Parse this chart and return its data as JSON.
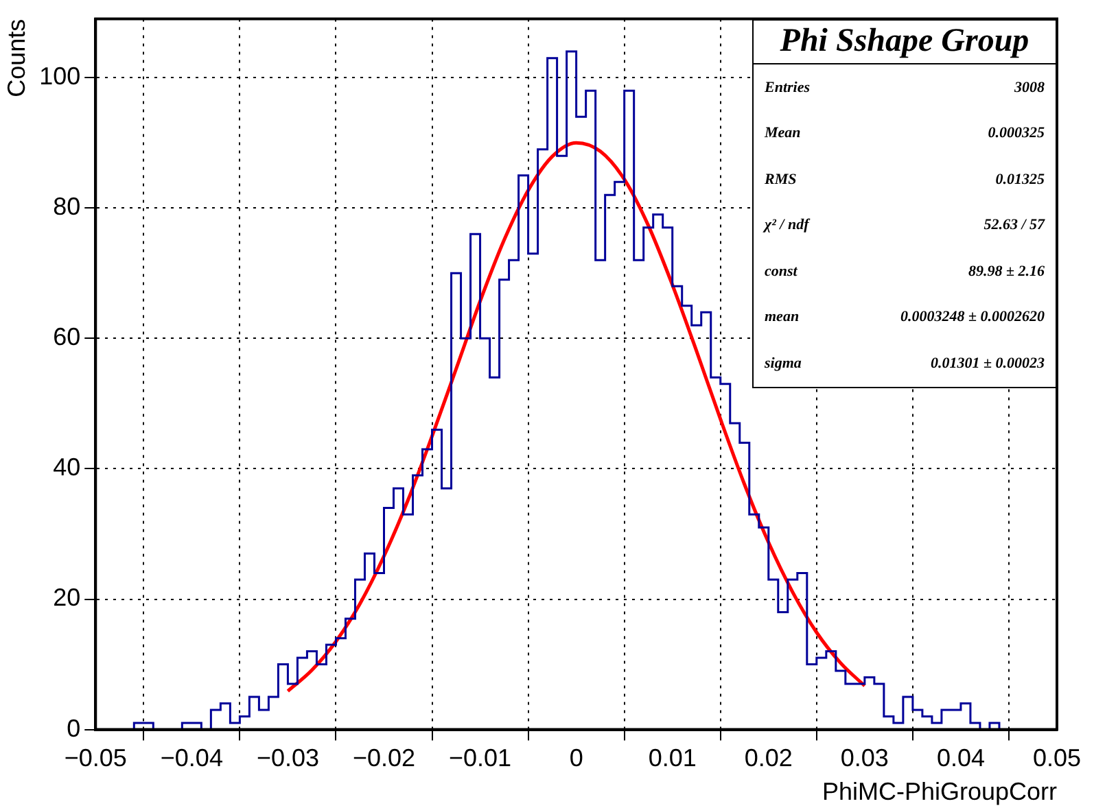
{
  "chart_data": {
    "type": "histogram",
    "xlabel": "PhiMC-PhiGroupCorr",
    "ylabel": "Counts",
    "color": "#000099",
    "bins": [
      -0.05,
      -0.049,
      -0.048,
      -0.047,
      -0.046,
      -0.045,
      -0.044,
      -0.043,
      -0.042,
      -0.041,
      -0.04,
      -0.039,
      -0.038,
      -0.037,
      -0.036,
      -0.035,
      -0.034,
      -0.033,
      -0.032,
      -0.031,
      -0.03,
      -0.029,
      -0.028,
      -0.027,
      -0.026,
      -0.025,
      -0.024,
      -0.023,
      -0.022,
      -0.021,
      -0.02,
      -0.019,
      -0.018,
      -0.017,
      -0.016,
      -0.015,
      -0.014,
      -0.013,
      -0.012,
      -0.011,
      -0.01,
      -0.009,
      -0.008,
      -0.007,
      -0.006,
      -0.005,
      -0.004,
      -0.003,
      -0.002,
      -0.001,
      0,
      0.001,
      0.002,
      0.003,
      0.004,
      0.005,
      0.006,
      0.007,
      0.008,
      0.009,
      0.01,
      0.011,
      0.012,
      0.013,
      0.014,
      0.015,
      0.016,
      0.017,
      0.018,
      0.019,
      0.02,
      0.021,
      0.022,
      0.023,
      0.024,
      0.025,
      0.026,
      0.027,
      0.028,
      0.029,
      0.03,
      0.031,
      0.032,
      0.033,
      0.034,
      0.035,
      0.036,
      0.037,
      0.038,
      0.039,
      0.04,
      0.041,
      0.042,
      0.043,
      0.044,
      0.045,
      0.046,
      0.047,
      0.048,
      0.049,
      0.05
    ],
    "values": [
      0,
      0,
      0,
      0,
      1,
      1,
      0,
      0,
      0,
      1,
      1,
      0,
      3,
      4,
      1,
      2,
      5,
      3,
      5,
      10,
      7,
      11,
      12,
      10,
      13,
      14,
      17,
      23,
      27,
      24,
      34,
      37,
      33,
      39,
      43,
      46,
      37,
      70,
      60,
      76,
      60,
      54,
      69,
      72,
      85,
      73,
      89,
      103,
      88,
      104,
      94,
      98,
      72,
      82,
      84,
      98,
      72,
      77,
      79,
      77,
      68,
      65,
      62,
      64,
      54,
      53,
      47,
      44,
      33,
      31,
      23,
      18,
      23,
      24,
      10,
      11,
      12,
      9,
      7,
      7,
      8,
      7,
      2,
      1,
      5,
      3,
      2,
      1,
      3,
      3,
      4,
      1,
      0,
      1,
      0,
      0,
      0,
      0,
      0,
      0
    ],
    "series": [
      {
        "type": "line",
        "color": "#ff0000",
        "x": [
          -0.03,
          -0.0275,
          -0.025,
          -0.0225,
          -0.02,
          -0.0175,
          -0.015,
          -0.0125,
          -0.01,
          -0.0075,
          -0.005,
          -0.0025,
          0,
          0.0025,
          0.005,
          0.0075,
          0.01,
          0.0125,
          0.015,
          0.0175,
          0.02,
          0.0225,
          0.025,
          0.0275,
          0.03
        ],
        "values": [
          5.9,
          9.1,
          13.5,
          19.3,
          26.6,
          35.2,
          45.0,
          55.3,
          65.7,
          75.1,
          82.7,
          87.9,
          90.0,
          88.7,
          84.4,
          77.3,
          68.2,
          58.1,
          47.6,
          37.6,
          28.7,
          21.1,
          14.9,
          10.2,
          6.7
        ]
      }
    ],
    "xlim": [
      -0.05,
      0.05
    ],
    "xticks": [
      {
        "value": -0.05,
        "label": "−0.05"
      },
      {
        "value": -0.04,
        "label": "−0.04"
      },
      {
        "value": -0.03,
        "label": "−0.03"
      },
      {
        "value": -0.02,
        "label": "−0.02"
      },
      {
        "value": -0.01,
        "label": "−0.01"
      },
      0,
      0.01,
      0.02,
      0.03,
      0.04,
      0.05
    ],
    "ylim": [
      0,
      109
    ],
    "yticks": [
      0,
      20,
      40,
      60,
      80,
      100
    ],
    "grid": true,
    "annotations": [
      "Phi Sshape Group",
      "Entries",
      "3008",
      "Mean",
      "0.000325",
      "RMS",
      "0.01325",
      "χ² / ndf",
      "52.63 / 57",
      "const",
      "89.98  ± 2.16",
      "mean",
      "0.0003248  ± 0.0002620",
      "sigma",
      "0.01301  ± 0.00023"
    ]
  }
}
